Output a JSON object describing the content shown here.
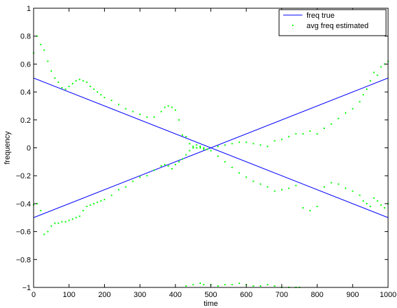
{
  "chart_data": {
    "type": "line",
    "title": "",
    "xlabel": "time",
    "ylabel": "frequency",
    "xlim": [
      0,
      1000
    ],
    "ylim": [
      -1,
      1
    ],
    "xticks": [
      0,
      100,
      200,
      300,
      400,
      500,
      600,
      700,
      800,
      900,
      1000
    ],
    "yticks": [
      -1,
      -0.8,
      -0.6,
      -0.4,
      -0.2,
      0,
      0.2,
      0.4,
      0.6,
      0.8,
      1
    ],
    "xtick_labels": [
      "0",
      "100",
      "200",
      "300",
      "400",
      "500",
      "600",
      "700",
      "800",
      "900",
      "1000"
    ],
    "ytick_labels": [
      "−1",
      "−0.8",
      "−0.6",
      "−0.4",
      "−0.2",
      "0",
      "0.2",
      "0.4",
      "0.6",
      "0.8",
      "1"
    ],
    "grid": false,
    "legend_position": "top-right",
    "series": [
      {
        "name": "freq true",
        "style": "line",
        "color": "#0000ff",
        "x": [
          0,
          1000
        ],
        "y": [
          0.5,
          -0.5
        ]
      },
      {
        "name": "freq true",
        "style": "line",
        "color": "#0000ff",
        "show_in_legend": false,
        "x": [
          0,
          1000
        ],
        "y": [
          -0.5,
          0.5
        ]
      },
      {
        "name": "avg freq estimated",
        "style": "scatter",
        "color": "#00ff00",
        "x": [
          0,
          10,
          20,
          30,
          40,
          50,
          60,
          70,
          80,
          90,
          100,
          110,
          120,
          130,
          140,
          150,
          160,
          170,
          180,
          190,
          200,
          220,
          240,
          260,
          280,
          300,
          320,
          340,
          360,
          370,
          380,
          390,
          400,
          410,
          420,
          430,
          440,
          450,
          460,
          470,
          480,
          490,
          500,
          520,
          540,
          560,
          580,
          600,
          620,
          640,
          660,
          680,
          700,
          720,
          740,
          760,
          780,
          800,
          820,
          840,
          860,
          880,
          900,
          920,
          930,
          940,
          950,
          960,
          970,
          980,
          990,
          1000
        ],
        "y": [
          0.68,
          0.8,
          0.74,
          0.7,
          0.62,
          0.55,
          0.5,
          0.47,
          0.43,
          0.42,
          0.44,
          0.46,
          0.48,
          0.49,
          0.48,
          0.47,
          0.44,
          0.42,
          0.4,
          0.38,
          0.36,
          0.34,
          0.31,
          0.28,
          0.26,
          0.24,
          0.22,
          0.22,
          0.26,
          0.29,
          0.3,
          0.29,
          0.27,
          0.2,
          0.09,
          0.08,
          0.03,
          0.01,
          0.0,
          0.0,
          -0.01,
          -0.01,
          -0.02,
          0.01,
          0.02,
          0.03,
          0.04,
          0.04,
          0.03,
          0.02,
          0.01,
          0.05,
          0.06,
          0.08,
          0.1,
          0.1,
          0.12,
          0.1,
          0.14,
          0.17,
          0.21,
          0.25,
          0.28,
          0.33,
          0.38,
          0.42,
          0.48,
          0.54,
          0.52,
          0.58,
          0.6,
          0.62
        ]
      },
      {
        "name": "avg freq estimated",
        "style": "scatter",
        "color": "#00ff00",
        "show_in_legend": false,
        "x": [
          0,
          10,
          20,
          30,
          40,
          50,
          60,
          70,
          80,
          90,
          100,
          110,
          120,
          130,
          140,
          150,
          160,
          170,
          180,
          190,
          200,
          220,
          240,
          260,
          280,
          300,
          320,
          340,
          360,
          370,
          380,
          390,
          400,
          410,
          420,
          430,
          440,
          450,
          460,
          470,
          480,
          490,
          500,
          520,
          540,
          560,
          580,
          600,
          620,
          640,
          660,
          680,
          700,
          720,
          740,
          760,
          780,
          800,
          820,
          840,
          860,
          880,
          900,
          920,
          930,
          940,
          950,
          960,
          970,
          980,
          990,
          1000
        ],
        "y": [
          -0.41,
          -0.4,
          -0.45,
          -0.62,
          -0.6,
          -0.56,
          -0.54,
          -0.54,
          -0.53,
          -0.53,
          -0.52,
          -0.51,
          -0.5,
          -0.49,
          -0.45,
          -0.42,
          -0.41,
          -0.4,
          -0.39,
          -0.38,
          -0.37,
          -0.34,
          -0.3,
          -0.28,
          -0.24,
          -0.21,
          -0.2,
          -0.16,
          -0.13,
          -0.12,
          -0.13,
          -0.15,
          -0.12,
          -0.1,
          -0.08,
          -0.05,
          -0.02,
          0.0,
          0.02,
          0.01,
          0.0,
          -0.01,
          -0.02,
          -0.06,
          -0.1,
          -0.14,
          -0.18,
          -0.21,
          -0.24,
          -0.26,
          -0.28,
          -0.31,
          -0.3,
          -0.29,
          -0.27,
          -0.43,
          -0.45,
          -0.42,
          -0.28,
          -0.25,
          -0.26,
          -0.29,
          -0.31,
          -0.34,
          -0.38,
          -0.4,
          -0.42,
          -0.36,
          -0.38,
          -0.41,
          -0.43,
          -0.4
        ]
      },
      {
        "name": "avg freq estimated",
        "style": "scatter",
        "color": "#00ff00",
        "show_in_legend": false,
        "x": [
          430,
          450,
          470,
          480,
          500,
          520,
          540,
          560,
          580,
          600,
          620,
          640,
          660,
          680,
          700,
          720,
          740,
          750
        ],
        "y": [
          -0.99,
          -0.98,
          -0.97,
          -0.98,
          -0.98,
          -0.99,
          -0.98,
          -0.98,
          -0.97,
          -0.98,
          -0.99,
          -0.99,
          -0.98,
          -0.99,
          -1.0,
          -1.0,
          -1.0,
          -1.0
        ]
      }
    ]
  }
}
